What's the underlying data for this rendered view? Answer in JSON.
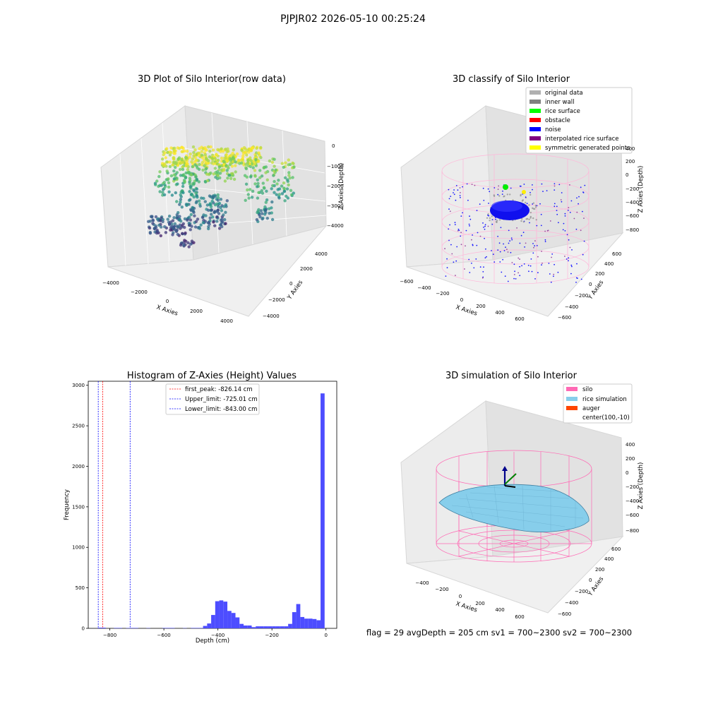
{
  "figure": {
    "suptitle": "PJPJR02 2026-05-10 00:25:24",
    "footer": "flag = 29  avgDepth = 205 cm  sv1 = 700~2300  sv2 = 700~2300"
  },
  "panels": {
    "raw": {
      "title": "3D Plot of Silo Interior(row data)",
      "x_label": "X Axies",
      "y_label": "Y Axies",
      "z_label": "Z Axies (Depth)",
      "x_ticks": [
        "−4000",
        "−2000",
        "0",
        "2000",
        "4000"
      ],
      "y_ticks": [
        "−4000",
        "−2000",
        "0",
        "2000",
        "4000"
      ],
      "z_ticks": [
        "0",
        "−1000",
        "−2000",
        "−3000",
        "−4000"
      ]
    },
    "classify": {
      "title": "3D classify of Silo Interior",
      "x_label": "X Axies",
      "y_label": "Y Axies",
      "z_label": "Z Axies (Depth)",
      "x_ticks": [
        "−600",
        "−400",
        "−200",
        "0",
        "200",
        "400",
        "600"
      ],
      "y_ticks": [
        "−600",
        "−400",
        "−200",
        "0",
        "200",
        "400",
        "600"
      ],
      "z_ticks": [
        "400",
        "200",
        "0",
        "−200",
        "−400",
        "−600",
        "−800"
      ],
      "legend": [
        {
          "label": "original data",
          "color": "#b0b0b0"
        },
        {
          "label": "inner wall",
          "color": "#808080"
        },
        {
          "label": "rice surface",
          "color": "#00ff00"
        },
        {
          "label": "obstacle",
          "color": "#ff0000"
        },
        {
          "label": "noise",
          "color": "#0000ff"
        },
        {
          "label": "interpolated rice surface",
          "color": "#800080"
        },
        {
          "label": "symmetric generated points",
          "color": "#ffff00"
        }
      ]
    },
    "simulation": {
      "title": "3D simulation of Silo Interior",
      "x_label": "X Axies",
      "y_label": "Y Axies",
      "z_label": "Z Axies (Depth)",
      "x_ticks": [
        "−400",
        "−200",
        "0",
        "200",
        "400",
        "600"
      ],
      "y_ticks": [
        "−600",
        "−400",
        "−200",
        "0",
        "200",
        "400",
        "600"
      ],
      "z_ticks": [
        "400",
        "200",
        "0",
        "−200",
        "−400",
        "−600",
        "−800"
      ],
      "legend": [
        {
          "label": "silo",
          "color": "#ff69b4"
        },
        {
          "label": "rice simulation",
          "color": "#87ceeb"
        },
        {
          "label": "auger",
          "color": "#ff4500"
        },
        {
          "label": "center(100,-10)",
          "color": ""
        }
      ]
    }
  },
  "chart_data": {
    "type": "bar",
    "title": "Histogram of Z-Axies (Height) Values",
    "xlabel": "Depth (cm)",
    "ylabel": "Frequency",
    "xlim": [
      -880,
      40
    ],
    "ylim": [
      0,
      3050
    ],
    "x_ticks": [
      -800,
      -600,
      -400,
      -200,
      0
    ],
    "y_ticks": [
      0,
      500,
      1000,
      1500,
      2000,
      2500,
      3000
    ],
    "bin_width": 15,
    "bins": [
      {
        "x": -845,
        "y": 8
      },
      {
        "x": -830,
        "y": 8
      },
      {
        "x": -785,
        "y": 5
      },
      {
        "x": -770,
        "y": 5
      },
      {
        "x": -740,
        "y": 4
      },
      {
        "x": -725,
        "y": 5
      },
      {
        "x": -710,
        "y": 5
      },
      {
        "x": -665,
        "y": 3
      },
      {
        "x": -605,
        "y": 5
      },
      {
        "x": -590,
        "y": 5
      },
      {
        "x": -575,
        "y": 5
      },
      {
        "x": -530,
        "y": 3
      },
      {
        "x": -500,
        "y": 5
      },
      {
        "x": -485,
        "y": 5
      },
      {
        "x": -470,
        "y": 5
      },
      {
        "x": -455,
        "y": 30
      },
      {
        "x": -440,
        "y": 60
      },
      {
        "x": -425,
        "y": 165
      },
      {
        "x": -410,
        "y": 335
      },
      {
        "x": -395,
        "y": 345
      },
      {
        "x": -380,
        "y": 330
      },
      {
        "x": -365,
        "y": 215
      },
      {
        "x": -350,
        "y": 190
      },
      {
        "x": -335,
        "y": 135
      },
      {
        "x": -320,
        "y": 55
      },
      {
        "x": -305,
        "y": 35
      },
      {
        "x": -290,
        "y": 35
      },
      {
        "x": -275,
        "y": 15
      },
      {
        "x": -260,
        "y": 25
      },
      {
        "x": -245,
        "y": 25
      },
      {
        "x": -230,
        "y": 25
      },
      {
        "x": -215,
        "y": 25
      },
      {
        "x": -200,
        "y": 25
      },
      {
        "x": -185,
        "y": 25
      },
      {
        "x": -170,
        "y": 25
      },
      {
        "x": -155,
        "y": 25
      },
      {
        "x": -140,
        "y": 55
      },
      {
        "x": -125,
        "y": 200
      },
      {
        "x": -110,
        "y": 300
      },
      {
        "x": -95,
        "y": 140
      },
      {
        "x": -80,
        "y": 120
      },
      {
        "x": -65,
        "y": 120
      },
      {
        "x": -50,
        "y": 115
      },
      {
        "x": -35,
        "y": 100
      },
      {
        "x": -20,
        "y": 2900
      }
    ],
    "vlines": [
      {
        "label": "first_peak: -826.14 cm",
        "x": -826.14,
        "color": "#ff0000"
      },
      {
        "label": "Upper_limit: -725.01 cm",
        "x": -725.01,
        "color": "#0000ff"
      },
      {
        "label": "Lower_limit: -843.00 cm",
        "x": -843.0,
        "color": "#0000ff"
      }
    ],
    "bar_color": "#4d4dff"
  }
}
